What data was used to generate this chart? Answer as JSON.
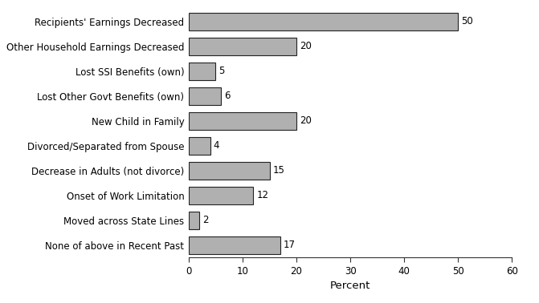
{
  "categories": [
    "Recipients' Earnings Decreased",
    "Other Household Earnings Decreased",
    "Lost SSI Benefits (own)",
    "Lost Other Govt Benefits (own)",
    "New Child in Family",
    "Divorced/Separated from Spouse",
    "Decrease in Adults (not divorce)",
    "Onset of Work Limitation",
    "Moved across State Lines",
    "None of above in Recent Past"
  ],
  "values": [
    50,
    20,
    5,
    6,
    20,
    4,
    15,
    12,
    2,
    17
  ],
  "bar_color": "#b0b0b0",
  "bar_edge_color": "#222222",
  "xlabel": "Percent",
  "xlim": [
    0,
    60
  ],
  "xticks": [
    0,
    10,
    20,
    30,
    40,
    50,
    60
  ],
  "background_color": "#ffffff",
  "bar_height": 0.72,
  "label_fontsize": 8.5,
  "tick_fontsize": 8.5,
  "xlabel_fontsize": 9.5
}
